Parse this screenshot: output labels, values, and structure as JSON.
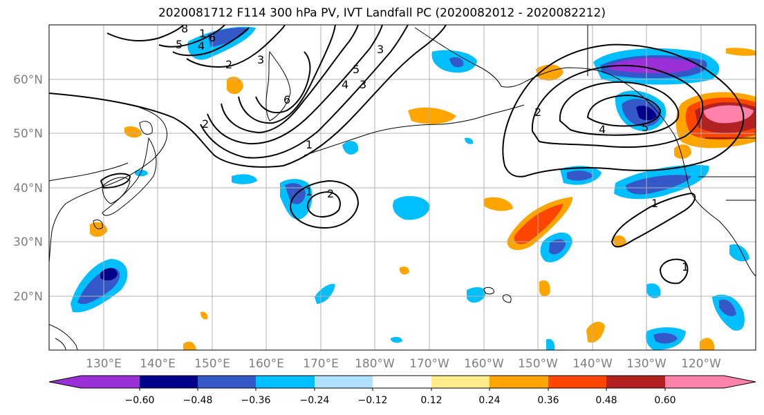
{
  "title": "2020081712 F114 300 hPa PV, IVT Landfall PC (2020082012 - 2020082212)",
  "map": {
    "projection": "PlateCarree",
    "lon_range": [
      "120°E",
      "250°E"
    ],
    "lat_range": [
      "10°N",
      "70°N"
    ],
    "gridlines": true,
    "lat_ticks": [
      "60°N",
      "50°N",
      "40°N",
      "30°N",
      "20°N"
    ],
    "lon_ticks": [
      "130°E",
      "140°E",
      "150°E",
      "160°E",
      "170°E",
      "180°W",
      "170°W",
      "160°W",
      "150°W",
      "140°W",
      "130°W",
      "120°W"
    ],
    "contour_labels": [
      "8",
      "1",
      "6",
      "5",
      "4",
      "2",
      "3",
      "3",
      "5",
      "4",
      "3",
      "6",
      "1",
      "2",
      "2",
      "1",
      "2",
      "4",
      "5",
      "1",
      "1"
    ],
    "colors": {
      "coast": "#000000",
      "grid": "#b0b0b0",
      "contour": "#000000",
      "tick_label": "#7f7f7f"
    }
  },
  "colorbar": {
    "orientation": "horizontal",
    "extend": "both",
    "tick_labels": [
      "−0.60",
      "−0.48",
      "−0.36",
      "−0.24",
      "−0.12",
      "0.12",
      "0.24",
      "0.36",
      "0.48",
      "0.60"
    ],
    "colors": [
      "#9b30d9",
      "#00008b",
      "#3558c9",
      "#00bfff",
      "#b0e2ff",
      "#ffffff",
      "#ffec8b",
      "#ffa500",
      "#ff4500",
      "#b22222",
      "#ff82ab"
    ]
  }
}
